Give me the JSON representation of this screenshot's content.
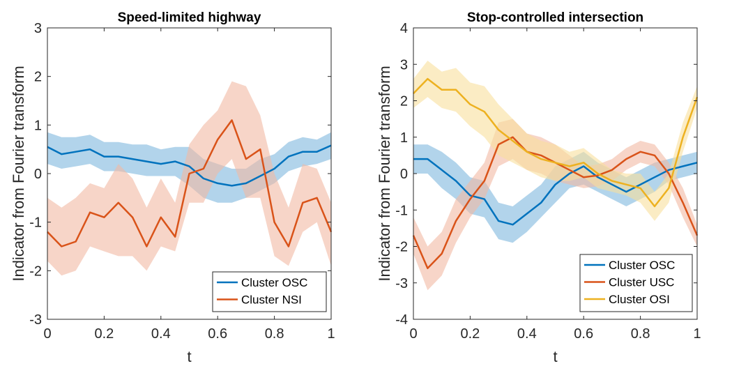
{
  "chart_data": [
    {
      "type": "line",
      "title": "Speed-limited highway",
      "xlabel": "t",
      "ylabel": "Indicator from Fourier transform",
      "xlim": [
        0,
        1
      ],
      "ylim": [
        -3,
        3
      ],
      "xticks": [
        "0",
        "0.2",
        "0.4",
        "0.6",
        "0.8",
        "1"
      ],
      "yticks": [
        "-3",
        "-2",
        "-1",
        "0",
        "1",
        "2",
        "3"
      ],
      "grid": false,
      "legend_position": "bottom-right",
      "series": [
        {
          "name": "Cluster OSC",
          "color": "#0072BD",
          "band_color": "#7FB8DE",
          "x": [
            0,
            0.05,
            0.1,
            0.15,
            0.2,
            0.25,
            0.3,
            0.35,
            0.4,
            0.45,
            0.5,
            0.55,
            0.6,
            0.65,
            0.7,
            0.75,
            0.8,
            0.85,
            0.9,
            0.95,
            1
          ],
          "y": [
            0.55,
            0.4,
            0.45,
            0.5,
            0.35,
            0.35,
            0.3,
            0.25,
            0.2,
            0.25,
            0.15,
            -0.1,
            -0.2,
            -0.25,
            -0.2,
            -0.05,
            0.1,
            0.35,
            0.45,
            0.45,
            0.58
          ],
          "lower": [
            0.2,
            0.1,
            0.15,
            0.2,
            0.05,
            0.05,
            0.0,
            -0.05,
            -0.05,
            -0.05,
            -0.25,
            -0.5,
            -0.6,
            -0.6,
            -0.5,
            -0.35,
            -0.2,
            0.05,
            0.15,
            0.2,
            0.3
          ],
          "upper": [
            0.85,
            0.75,
            0.75,
            0.8,
            0.65,
            0.65,
            0.6,
            0.6,
            0.5,
            0.55,
            0.55,
            0.3,
            0.2,
            0.1,
            0.1,
            0.3,
            0.4,
            0.65,
            0.75,
            0.7,
            0.85
          ]
        },
        {
          "name": "Cluster NSI",
          "color": "#D95319",
          "band_color": "#F2B9A3",
          "x": [
            0,
            0.05,
            0.1,
            0.15,
            0.2,
            0.25,
            0.3,
            0.35,
            0.4,
            0.45,
            0.5,
            0.55,
            0.6,
            0.65,
            0.7,
            0.75,
            0.8,
            0.85,
            0.9,
            0.95,
            1
          ],
          "y": [
            -1.2,
            -1.5,
            -1.4,
            -0.8,
            -0.9,
            -0.6,
            -0.9,
            -1.5,
            -0.9,
            -1.3,
            0.0,
            0.1,
            0.7,
            1.1,
            0.3,
            0.5,
            -1.0,
            -1.5,
            -0.6,
            -0.5,
            -1.2
          ],
          "lower": [
            -1.8,
            -2.1,
            -2.0,
            -1.5,
            -1.6,
            -1.7,
            -1.7,
            -2.0,
            -1.5,
            -1.6,
            -0.6,
            -0.6,
            0.0,
            0.3,
            -0.5,
            -0.5,
            -1.7,
            -1.9,
            -1.2,
            -1.0,
            -1.9
          ],
          "upper": [
            -0.5,
            -0.7,
            -0.5,
            -0.2,
            -0.3,
            0.2,
            -0.1,
            -0.7,
            -0.1,
            -0.6,
            0.6,
            1.0,
            1.3,
            1.9,
            1.8,
            1.2,
            0.0,
            -0.7,
            0.2,
            0.1,
            -0.6
          ]
        }
      ]
    },
    {
      "type": "line",
      "title": "Stop-controlled intersection",
      "xlabel": "t",
      "ylabel": "Indicator from Fourier transform",
      "xlim": [
        0,
        1
      ],
      "ylim": [
        -4,
        4
      ],
      "xticks": [
        "0",
        "0.2",
        "0.4",
        "0.6",
        "0.8",
        "1"
      ],
      "yticks": [
        "-4",
        "-3",
        "-2",
        "-1",
        "0",
        "1",
        "2",
        "3",
        "4"
      ],
      "grid": false,
      "legend_position": "bottom-right",
      "series": [
        {
          "name": "Cluster OSC",
          "color": "#0072BD",
          "band_color": "#7FB8DE",
          "x": [
            0,
            0.05,
            0.1,
            0.15,
            0.2,
            0.25,
            0.3,
            0.35,
            0.4,
            0.45,
            0.5,
            0.55,
            0.6,
            0.65,
            0.7,
            0.75,
            0.8,
            0.85,
            0.9,
            0.95,
            1
          ],
          "y": [
            0.4,
            0.4,
            0.1,
            -0.2,
            -0.6,
            -0.7,
            -1.3,
            -1.4,
            -1.1,
            -0.8,
            -0.3,
            0.0,
            0.2,
            -0.1,
            -0.3,
            -0.5,
            -0.3,
            -0.1,
            0.1,
            0.2,
            0.3
          ],
          "lower": [
            0.0,
            0.0,
            -0.4,
            -0.7,
            -1.1,
            -1.2,
            -1.8,
            -1.9,
            -1.6,
            -1.2,
            -0.8,
            -0.4,
            -0.3,
            -0.5,
            -0.7,
            -0.9,
            -0.7,
            -0.5,
            -0.2,
            -0.1,
            0.0
          ],
          "upper": [
            0.8,
            0.8,
            0.6,
            0.3,
            -0.1,
            -0.2,
            -0.8,
            -0.9,
            -0.6,
            -0.3,
            0.2,
            0.4,
            0.6,
            0.3,
            0.1,
            -0.1,
            0.1,
            0.3,
            0.4,
            0.5,
            0.6
          ]
        },
        {
          "name": "Cluster USC",
          "color": "#D95319",
          "band_color": "#F2B9A3",
          "x": [
            0,
            0.05,
            0.1,
            0.15,
            0.2,
            0.25,
            0.3,
            0.35,
            0.4,
            0.45,
            0.5,
            0.55,
            0.6,
            0.65,
            0.7,
            0.75,
            0.8,
            0.85,
            0.9,
            0.95,
            1
          ],
          "y": [
            -1.7,
            -2.6,
            -2.2,
            -1.3,
            -0.7,
            -0.2,
            0.8,
            1.0,
            0.6,
            0.5,
            0.3,
            0.1,
            -0.1,
            -0.05,
            0.1,
            0.4,
            0.6,
            0.5,
            0.0,
            -0.8,
            -1.7
          ],
          "lower": [
            -2.2,
            -3.2,
            -2.8,
            -1.9,
            -1.2,
            -0.7,
            0.2,
            0.4,
            0.1,
            0.0,
            -0.2,
            -0.3,
            -0.4,
            -0.35,
            -0.2,
            0.1,
            0.3,
            0.2,
            -0.3,
            -1.2,
            -2.0
          ],
          "upper": [
            -1.2,
            -2.0,
            -1.6,
            -0.7,
            -0.2,
            0.3,
            1.4,
            1.5,
            1.1,
            1.0,
            0.8,
            0.5,
            0.2,
            0.25,
            0.4,
            0.7,
            0.9,
            0.8,
            0.3,
            -0.4,
            -1.4
          ]
        },
        {
          "name": "Cluster OSI",
          "color": "#EDB120",
          "band_color": "#F8DF9C",
          "x": [
            0,
            0.05,
            0.1,
            0.15,
            0.2,
            0.25,
            0.3,
            0.35,
            0.4,
            0.45,
            0.5,
            0.55,
            0.6,
            0.65,
            0.7,
            0.75,
            0.8,
            0.85,
            0.9,
            0.95,
            1
          ],
          "y": [
            2.2,
            2.6,
            2.3,
            2.3,
            1.9,
            1.7,
            1.2,
            0.9,
            0.6,
            0.4,
            0.3,
            0.2,
            0.3,
            0.0,
            -0.2,
            -0.3,
            -0.4,
            -0.9,
            -0.4,
            1.0,
            2.1
          ],
          "lower": [
            1.8,
            2.1,
            1.8,
            1.7,
            1.3,
            1.0,
            0.5,
            0.3,
            0.1,
            -0.1,
            -0.2,
            -0.2,
            -0.1,
            -0.4,
            -0.5,
            -0.6,
            -0.8,
            -1.3,
            -0.8,
            0.6,
            1.8
          ],
          "upper": [
            2.6,
            3.1,
            2.8,
            2.9,
            2.5,
            2.4,
            1.9,
            1.5,
            1.1,
            0.9,
            0.8,
            0.6,
            0.7,
            0.4,
            0.1,
            0.0,
            0.0,
            -0.5,
            0.0,
            1.4,
            2.4
          ]
        }
      ]
    }
  ]
}
